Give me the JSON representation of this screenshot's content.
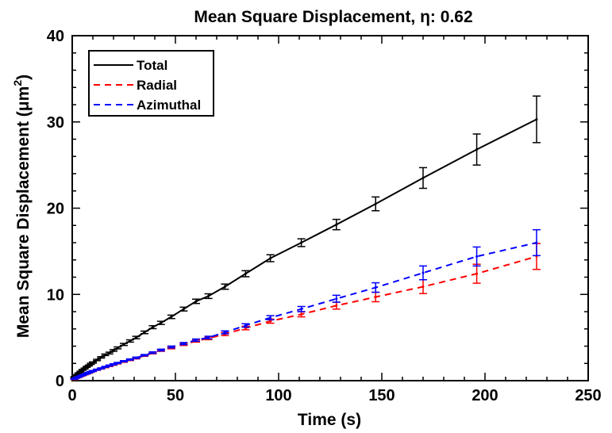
{
  "chart_data": {
    "type": "line",
    "title": "Mean Square Displacement, η:  0.62",
    "xlabel": "Time (s)",
    "ylabel": "Mean Square Displacement (μm²)",
    "ylabel_main": "Mean Square Displacement (",
    "ylabel_unit": "μm",
    "ylabel_exp": "2",
    "ylabel_close": ")",
    "xlim": [
      0,
      250
    ],
    "ylim": [
      0,
      40
    ],
    "xticks": [
      0,
      50,
      100,
      150,
      200,
      250
    ],
    "xtick_labels": [
      "0",
      "50",
      "100",
      "150",
      "200",
      "250"
    ],
    "yticks": [
      0,
      10,
      20,
      30,
      40
    ],
    "ytick_labels": [
      "0",
      "10",
      "20",
      "30",
      "40"
    ],
    "grid": false,
    "legend_position": "top-left",
    "series": [
      {
        "name": "Total",
        "color": "#000000",
        "style": "solid",
        "x": [
          1,
          2,
          3,
          4,
          5,
          6,
          7,
          8,
          9,
          10,
          12,
          14,
          16,
          18,
          20,
          22,
          25,
          28,
          31,
          35,
          39,
          43,
          48,
          54,
          60,
          66,
          74,
          84,
          96,
          111,
          128,
          147,
          170,
          196,
          225
        ],
        "y": [
          0.4,
          0.65,
          0.85,
          1.05,
          1.25,
          1.4,
          1.6,
          1.75,
          1.95,
          2.1,
          2.4,
          2.7,
          3.0,
          3.2,
          3.5,
          3.8,
          4.2,
          4.6,
          5.0,
          5.6,
          6.2,
          6.7,
          7.4,
          8.3,
          9.2,
          9.8,
          10.9,
          12.4,
          14.2,
          16.0,
          18.1,
          20.5,
          23.5,
          26.8,
          30.3
        ],
        "err": [
          0.05,
          0.05,
          0.05,
          0.05,
          0.05,
          0.06,
          0.06,
          0.06,
          0.07,
          0.07,
          0.08,
          0.08,
          0.09,
          0.1,
          0.1,
          0.11,
          0.12,
          0.13,
          0.14,
          0.15,
          0.17,
          0.18,
          0.2,
          0.22,
          0.25,
          0.27,
          0.3,
          0.35,
          0.4,
          0.45,
          0.6,
          0.8,
          1.2,
          1.8,
          2.7
        ]
      },
      {
        "name": "Radial",
        "color": "#ff0000",
        "style": "dashed",
        "x": [
          1,
          2,
          3,
          4,
          5,
          6,
          7,
          8,
          9,
          10,
          12,
          14,
          16,
          18,
          20,
          22,
          25,
          28,
          31,
          35,
          39,
          43,
          48,
          54,
          60,
          66,
          74,
          84,
          96,
          111,
          128,
          147,
          170,
          196,
          225
        ],
        "y": [
          0.15,
          0.3,
          0.4,
          0.5,
          0.6,
          0.7,
          0.8,
          0.9,
          1.0,
          1.1,
          1.25,
          1.4,
          1.55,
          1.7,
          1.85,
          2.0,
          2.2,
          2.4,
          2.6,
          2.9,
          3.2,
          3.5,
          3.8,
          4.2,
          4.6,
          4.9,
          5.4,
          6.1,
          6.9,
          7.7,
          8.7,
          9.7,
          10.9,
          12.4,
          14.4
        ]
      },
      {
        "name": "Azimuthal",
        "color": "#0000ff",
        "style": "dashed",
        "x": [
          1,
          2,
          3,
          4,
          5,
          6,
          7,
          8,
          9,
          10,
          12,
          14,
          16,
          18,
          20,
          22,
          25,
          28,
          31,
          35,
          39,
          43,
          48,
          54,
          60,
          66,
          74,
          84,
          96,
          111,
          128,
          147,
          170,
          196,
          225
        ],
        "y": [
          0.2,
          0.32,
          0.43,
          0.53,
          0.63,
          0.73,
          0.83,
          0.93,
          1.03,
          1.13,
          1.28,
          1.43,
          1.6,
          1.75,
          1.9,
          2.05,
          2.25,
          2.45,
          2.65,
          2.95,
          3.25,
          3.55,
          3.9,
          4.3,
          4.7,
          5.0,
          5.6,
          6.4,
          7.3,
          8.3,
          9.5,
          10.8,
          12.5,
          14.4,
          16.0
        ]
      }
    ],
    "rb_err": [
      0.03,
      0.03,
      0.03,
      0.03,
      0.03,
      0.03,
      0.04,
      0.04,
      0.04,
      0.04,
      0.05,
      0.05,
      0.05,
      0.06,
      0.06,
      0.06,
      0.07,
      0.07,
      0.08,
      0.08,
      0.09,
      0.1,
      0.11,
      0.12,
      0.13,
      0.15,
      0.17,
      0.2,
      0.24,
      0.3,
      0.4,
      0.55,
      0.8,
      1.1,
      1.5
    ]
  }
}
